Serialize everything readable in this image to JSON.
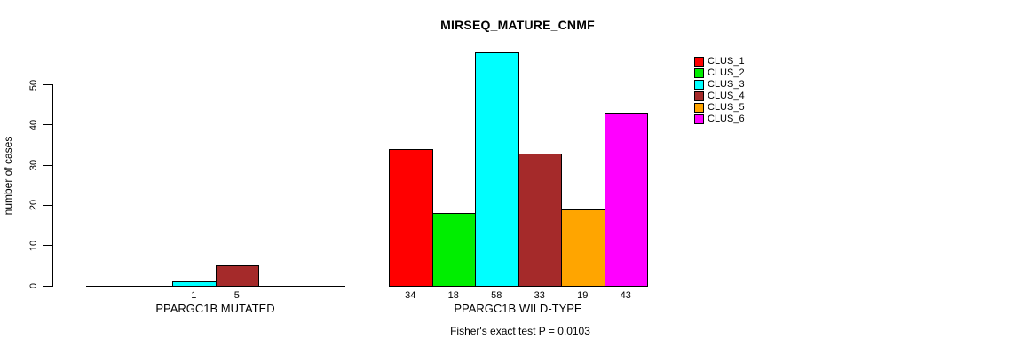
{
  "chart_data": {
    "type": "bar",
    "title": "MIRSEQ_MATURE_CNMF",
    "ylabel": "number of cases",
    "footer": "Fisher's exact test P = 0.0103",
    "ylim": [
      0,
      58
    ],
    "yticks": [
      0,
      10,
      20,
      30,
      40,
      50
    ],
    "grid": false,
    "legend_position": "top-right",
    "categories": [
      "PPARGC1B MUTATED",
      "PPARGC1B WILD-TYPE"
    ],
    "series": [
      {
        "name": "CLUS_1",
        "color": "#FF0000",
        "values": [
          0,
          34
        ]
      },
      {
        "name": "CLUS_2",
        "color": "#00EE00",
        "values": [
          0,
          18
        ]
      },
      {
        "name": "CLUS_3",
        "color": "#00FFFF",
        "values": [
          1,
          58
        ]
      },
      {
        "name": "CLUS_4",
        "color": "#A52A2A",
        "values": [
          5,
          33
        ]
      },
      {
        "name": "CLUS_5",
        "color": "#FFA500",
        "values": [
          0,
          19
        ]
      },
      {
        "name": "CLUS_6",
        "color": "#FF00FF",
        "values": [
          0,
          43
        ]
      }
    ],
    "bar_label_rule": "value shown under each bar only when value > 0",
    "axis_color": "#000000",
    "background_color": "#FFFFFF"
  }
}
